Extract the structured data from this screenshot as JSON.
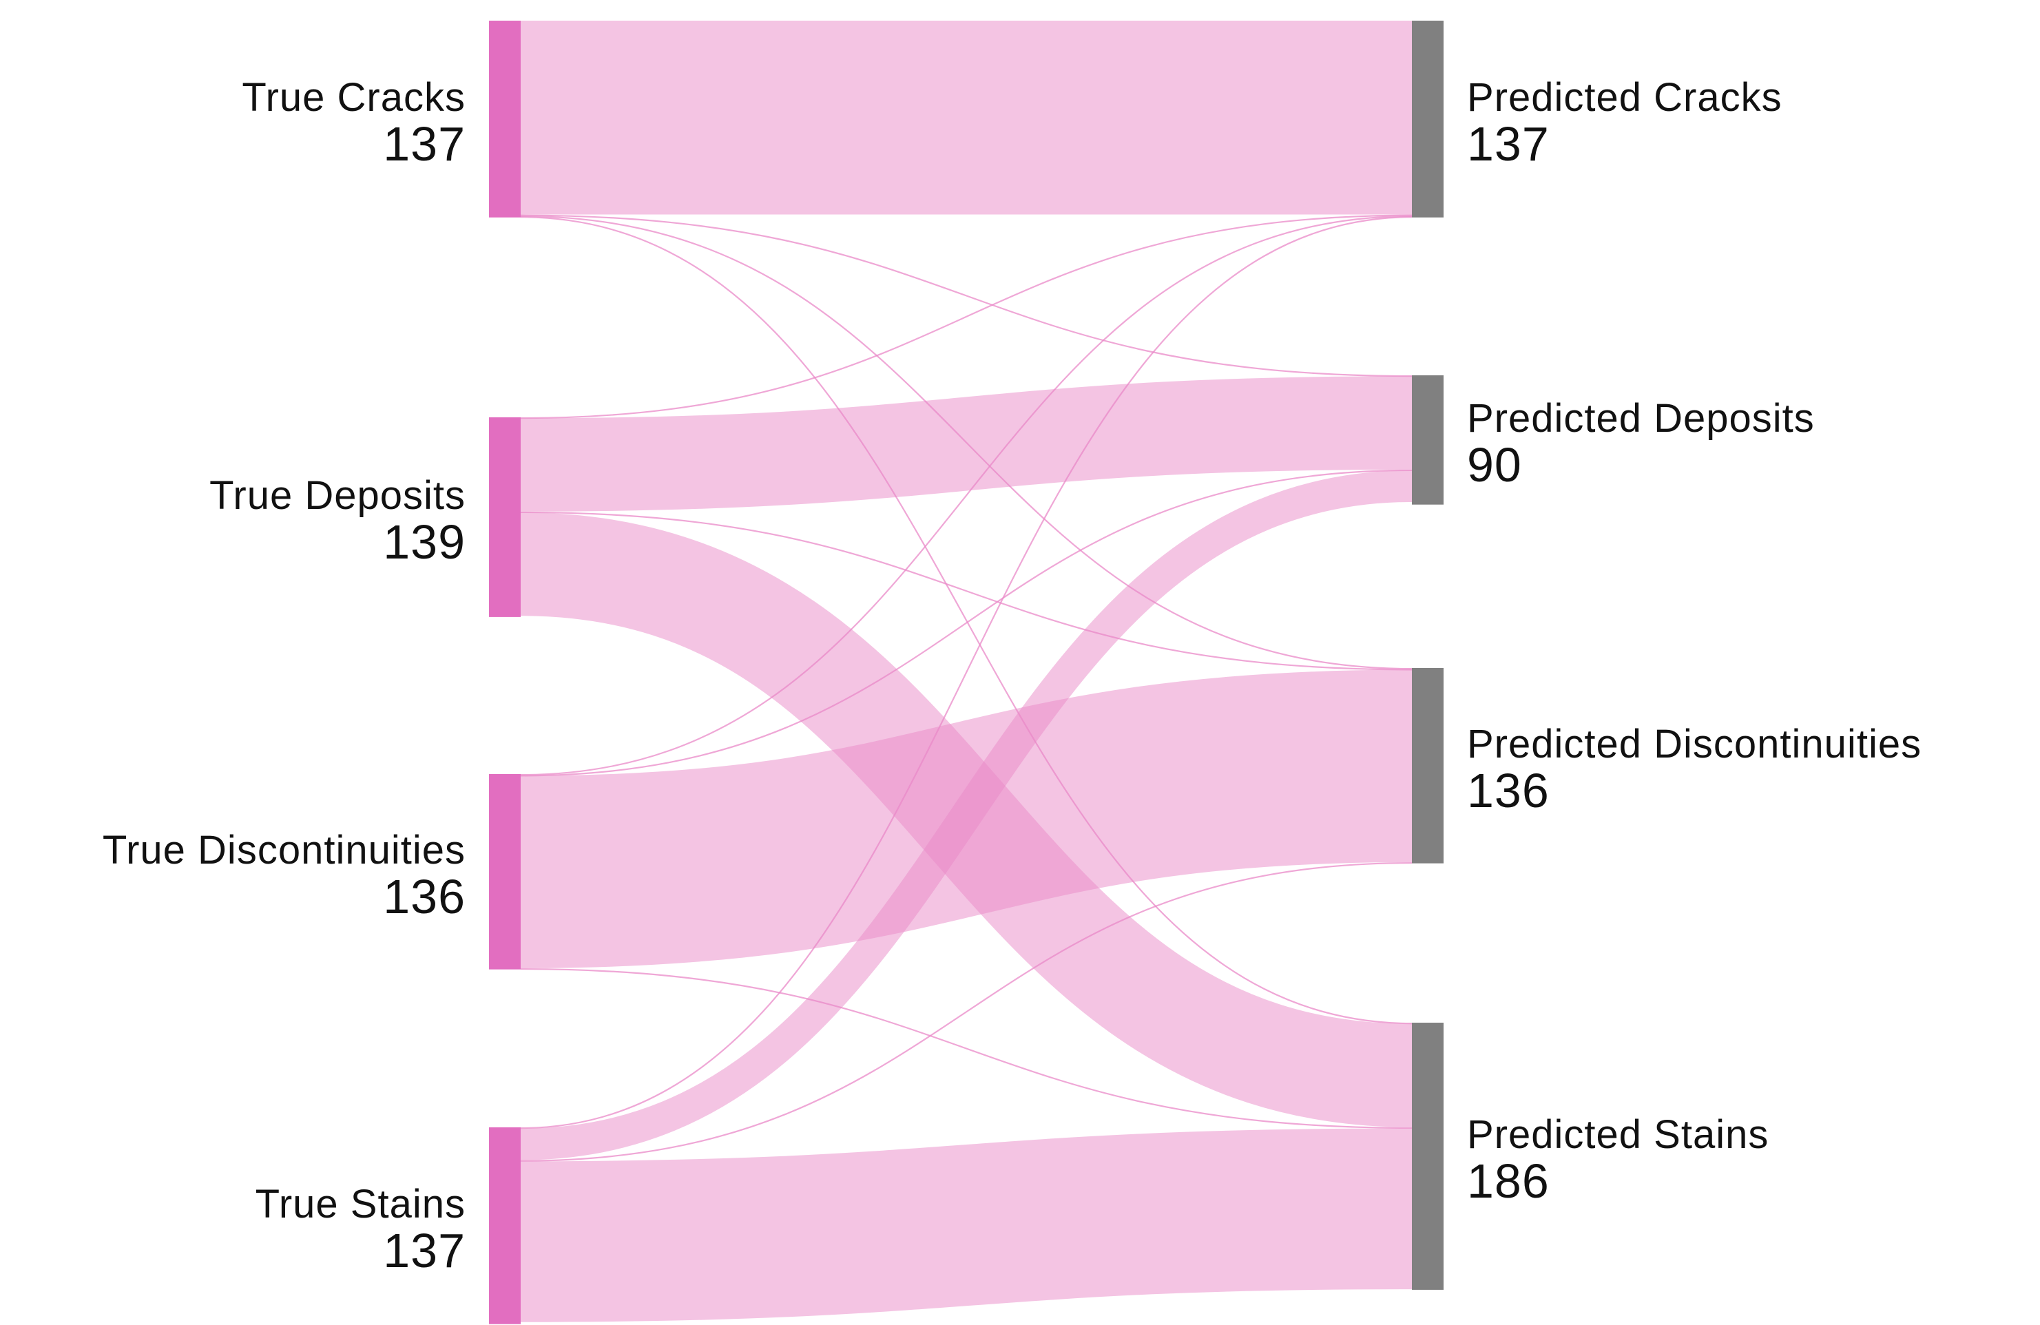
{
  "colors": {
    "source_node": "#e26ec0",
    "target_node": "#808080",
    "link": "#e98ac8",
    "text": "#111111"
  },
  "sankey": {
    "source_nodes": [
      {
        "id": "tc",
        "name": "True Cracks",
        "count": "137",
        "value": 137
      },
      {
        "id": "td",
        "name": "True Deposits",
        "count": "139",
        "value": 139
      },
      {
        "id": "tdi",
        "name": "True Discontinuities",
        "count": "136",
        "value": 136
      },
      {
        "id": "ts",
        "name": "True Stains",
        "count": "137",
        "value": 137
      }
    ],
    "target_nodes": [
      {
        "id": "pc",
        "name": "Predicted Cracks",
        "count": "137",
        "value": 137
      },
      {
        "id": "pd",
        "name": "Predicted Deposits",
        "count": "90",
        "value": 90
      },
      {
        "id": "pdi",
        "name": "Predicted Discontinuities",
        "count": "136",
        "value": 136
      },
      {
        "id": "ps",
        "name": "Predicted Stains",
        "count": "186",
        "value": 186
      }
    ],
    "links": [
      {
        "source": "tc",
        "target": "pc",
        "value": 135
      },
      {
        "source": "tc",
        "target": "pd",
        "value": 0.6
      },
      {
        "source": "tc",
        "target": "pdi",
        "value": 0.6
      },
      {
        "source": "tc",
        "target": "ps",
        "value": 0.8
      },
      {
        "source": "td",
        "target": "pc",
        "value": 0.6
      },
      {
        "source": "td",
        "target": "pd",
        "value": 65
      },
      {
        "source": "td",
        "target": "pdi",
        "value": 0.6
      },
      {
        "source": "td",
        "target": "ps",
        "value": 72
      },
      {
        "source": "tdi",
        "target": "pc",
        "value": 0.6
      },
      {
        "source": "tdi",
        "target": "pd",
        "value": 0.6
      },
      {
        "source": "tdi",
        "target": "pdi",
        "value": 134
      },
      {
        "source": "tdi",
        "target": "ps",
        "value": 0.8
      },
      {
        "source": "ts",
        "target": "pc",
        "value": 0.8
      },
      {
        "source": "ts",
        "target": "pd",
        "value": 22
      },
      {
        "source": "ts",
        "target": "pdi",
        "value": 0.8
      },
      {
        "source": "ts",
        "target": "ps",
        "value": 112
      }
    ]
  }
}
